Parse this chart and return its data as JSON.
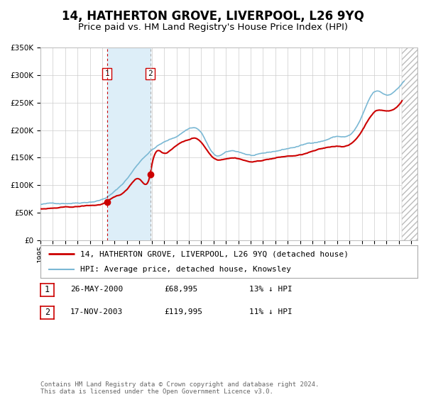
{
  "title": "14, HATHERTON GROVE, LIVERPOOL, L26 9YQ",
  "subtitle": "Price paid vs. HM Land Registry's House Price Index (HPI)",
  "ylim": [
    0,
    350000
  ],
  "yticks": [
    0,
    50000,
    100000,
    150000,
    200000,
    250000,
    300000,
    350000
  ],
  "ytick_labels": [
    "£0",
    "£50K",
    "£100K",
    "£150K",
    "£200K",
    "£250K",
    "£300K",
    "£350K"
  ],
  "xlim_start": 1995.0,
  "xlim_end": 2025.5,
  "transaction1": {
    "date_num": 2000.38,
    "price": 68995,
    "label": "1"
  },
  "transaction2": {
    "date_num": 2003.88,
    "price": 119995,
    "label": "2"
  },
  "shade_start": 2000.38,
  "shade_end": 2003.88,
  "hatch_start": 2024.25,
  "legend_entries": [
    {
      "label": "14, HATHERTON GROVE, LIVERPOOL, L26 9YQ (detached house)",
      "color": "#cc0000",
      "lw": 1.5
    },
    {
      "label": "HPI: Average price, detached house, Knowsley",
      "color": "#7ab8d4",
      "lw": 1.2
    }
  ],
  "table_rows": [
    {
      "num": "1",
      "date": "26-MAY-2000",
      "price": "£68,995",
      "hpi": "13% ↓ HPI"
    },
    {
      "num": "2",
      "date": "17-NOV-2003",
      "price": "£119,995",
      "hpi": "11% ↓ HPI"
    }
  ],
  "footnote": "Contains HM Land Registry data © Crown copyright and database right 2024.\nThis data is licensed under the Open Government Licence v3.0.",
  "background_color": "#ffffff",
  "grid_color": "#cccccc",
  "shade_color": "#ddeef8",
  "dot_color": "#cc0000",
  "vline1_color": "#cc0000",
  "vline2_color": "#aaaaaa",
  "title_fontsize": 12,
  "subtitle_fontsize": 9.5,
  "tick_fontsize": 7.5,
  "legend_fontsize": 8,
  "table_fontsize": 8,
  "footnote_fontsize": 6.5
}
